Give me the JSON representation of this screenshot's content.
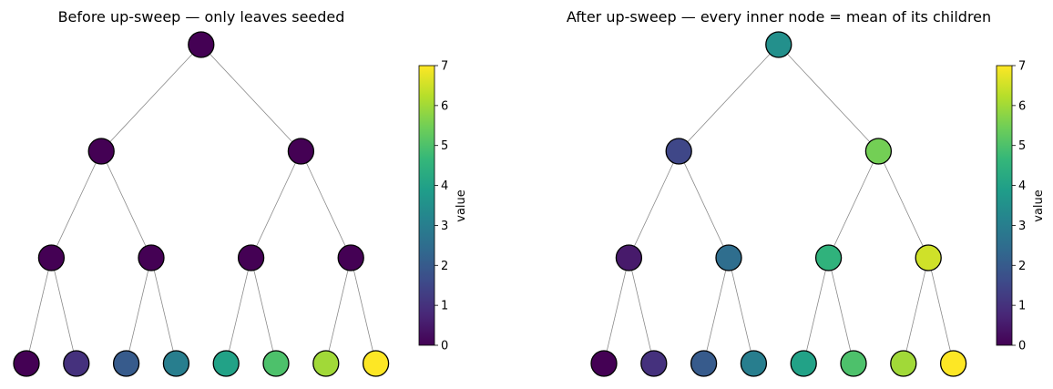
{
  "colormap": {
    "name": "viridis",
    "min": 0,
    "max": 7,
    "stops": [
      "#440154",
      "#482878",
      "#3e4989",
      "#31688e",
      "#26828e",
      "#1f9e89",
      "#35b779",
      "#6ece58",
      "#b5de2b",
      "#fde725"
    ]
  },
  "panels": [
    {
      "title": "Before up-sweep — only leaves seeded",
      "colorbar_label": "value",
      "colorbar_ticks": [
        "0",
        "1",
        "2",
        "3",
        "4",
        "5",
        "6",
        "7"
      ],
      "levels": [
        [
          0
        ],
        [
          0,
          0
        ],
        [
          0,
          0,
          0,
          0
        ],
        [
          0,
          1,
          2,
          3,
          4,
          5,
          6,
          7
        ]
      ]
    },
    {
      "title": "After up-sweep — every inner node = mean of its children",
      "colorbar_label": "value",
      "colorbar_ticks": [
        "0",
        "1",
        "2",
        "3",
        "4",
        "5",
        "6",
        "7"
      ],
      "levels": [
        [
          3.5
        ],
        [
          1.5,
          5.5
        ],
        [
          0.5,
          2.5,
          4.5,
          6.5
        ],
        [
          0,
          1,
          2,
          3,
          4,
          5,
          6,
          7
        ]
      ]
    }
  ]
}
